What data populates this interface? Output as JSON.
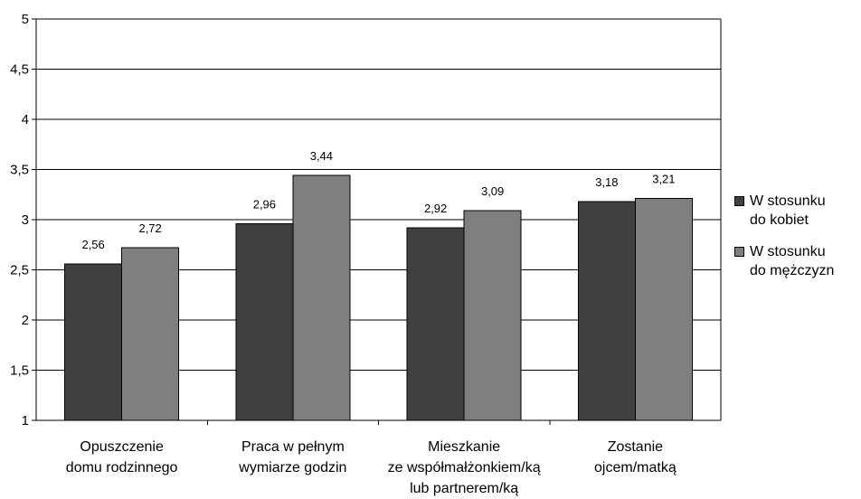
{
  "chart_data": {
    "type": "bar",
    "categories": [
      [
        "Opuszczenie",
        "domu rodzinnego"
      ],
      [
        "Praca w pełnym",
        "wymiarze godzin"
      ],
      [
        "Mieszkanie",
        "ze współmałżonkiem/ką",
        "lub partnerem/ką"
      ],
      [
        "Zostanie",
        "ojcem/matką"
      ]
    ],
    "series": [
      {
        "name": "W stosunku do kobiet",
        "legend_lines": [
          "W stosunku",
          "do kobiet"
        ],
        "color": "#404040",
        "values": [
          2.56,
          2.96,
          2.92,
          3.18
        ],
        "labels": [
          "2,56",
          "2,96",
          "2,92",
          "3,18"
        ]
      },
      {
        "name": "W stosunku do mężczyzn",
        "legend_lines": [
          "W stosunku",
          "do mężczyzn"
        ],
        "color": "#7f7f7f",
        "values": [
          2.72,
          3.44,
          3.09,
          3.21
        ],
        "labels": [
          "2,72",
          "3,44",
          "3,09",
          "3,21"
        ]
      }
    ],
    "y_ticks": [
      1,
      1.5,
      2,
      2.5,
      3,
      3.5,
      4,
      4.5,
      5
    ],
    "y_tick_labels": [
      "1",
      "1,5",
      "2",
      "2,5",
      "3",
      "3,5",
      "4",
      "4,5",
      "5"
    ],
    "ylim": [
      1,
      5
    ],
    "grid": true,
    "legend": "right",
    "title": "",
    "xlabel": "",
    "ylabel": ""
  }
}
